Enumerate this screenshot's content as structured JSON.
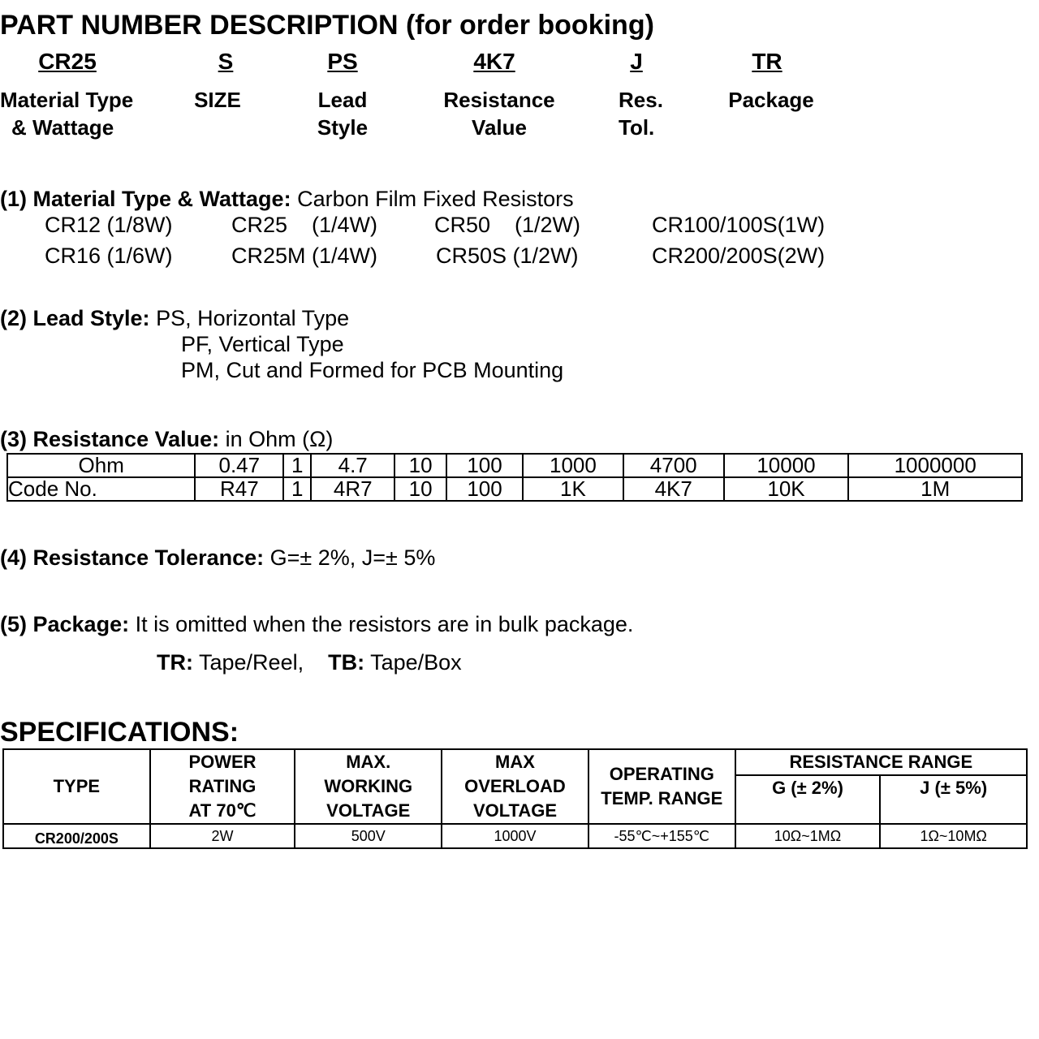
{
  "title": "PART NUMBER DESCRIPTION (for order booking)",
  "part_codes": [
    {
      "code": "CR25",
      "label1": "Material Type",
      "label2": "& Wattage"
    },
    {
      "code": "S",
      "label1": "SIZE",
      "label2": ""
    },
    {
      "code": "PS",
      "label1": "Lead",
      "label2": "Style"
    },
    {
      "code": "4K7",
      "label1": "Resistance",
      "label2": "Value"
    },
    {
      "code": "J",
      "label1": "Res.",
      "label2": "Tol."
    },
    {
      "code": "TR",
      "label1": "Package",
      "label2": ""
    }
  ],
  "s1": {
    "heading": "(1) Material Type & Wattage:",
    "text": "Carbon Film Fixed Resistors",
    "items": [
      "CR12 (1/8W)",
      "CR25    (1/4W)",
      "CR50    (1/2W)",
      "CR100/100S(1W)",
      "CR16 (1/6W)",
      "CR25M (1/4W)",
      "CR50S (1/2W)",
      "CR200/200S(2W)"
    ]
  },
  "s2": {
    "heading": "(2) Lead Style:",
    "lines": [
      "PS, Horizontal Type",
      "PF, Vertical Type",
      "PM, Cut and Formed for PCB Mounting"
    ]
  },
  "s3": {
    "heading": "(3) Resistance Value:",
    "text": "in Ohm (Ω)",
    "rows": [
      [
        "Ohm",
        "0.47",
        "1",
        "4.7",
        "10",
        "100",
        "1000",
        "4700",
        "10000",
        "1000000"
      ],
      [
        "Code No.",
        "R47",
        "1",
        "4R7",
        "10",
        "100",
        "1K",
        "4K7",
        "10K",
        "1M"
      ]
    ]
  },
  "s4": {
    "heading": "(4) Resistance Tolerance:",
    "text": "G=± 2%, J=± 5%"
  },
  "s5": {
    "heading": "(5) Package:",
    "text": "It is omitted when the resistors are in bulk package.",
    "tr_label": "TR:",
    "tr_text": "Tape/Reel,",
    "tb_label": "TB:",
    "tb_text": "Tape/Box"
  },
  "spec": {
    "heading": "SPECIFICATIONS:",
    "headers": [
      "TYPE",
      "POWER\nRATING\nAT 70℃",
      "MAX.\nWORKING\nVOLTAGE",
      "MAX\nOVERLOAD\nVOLTAGE",
      "OPERATING\nTEMP. RANGE",
      "RESISTANCE RANGE"
    ],
    "sub": [
      "G (± 2%)",
      "J (± 5%)"
    ],
    "row": [
      "CR200/200S",
      "2W",
      "500V",
      "1000V",
      "-55℃~+155℃",
      "10Ω~1MΩ",
      "1Ω~10MΩ"
    ]
  }
}
